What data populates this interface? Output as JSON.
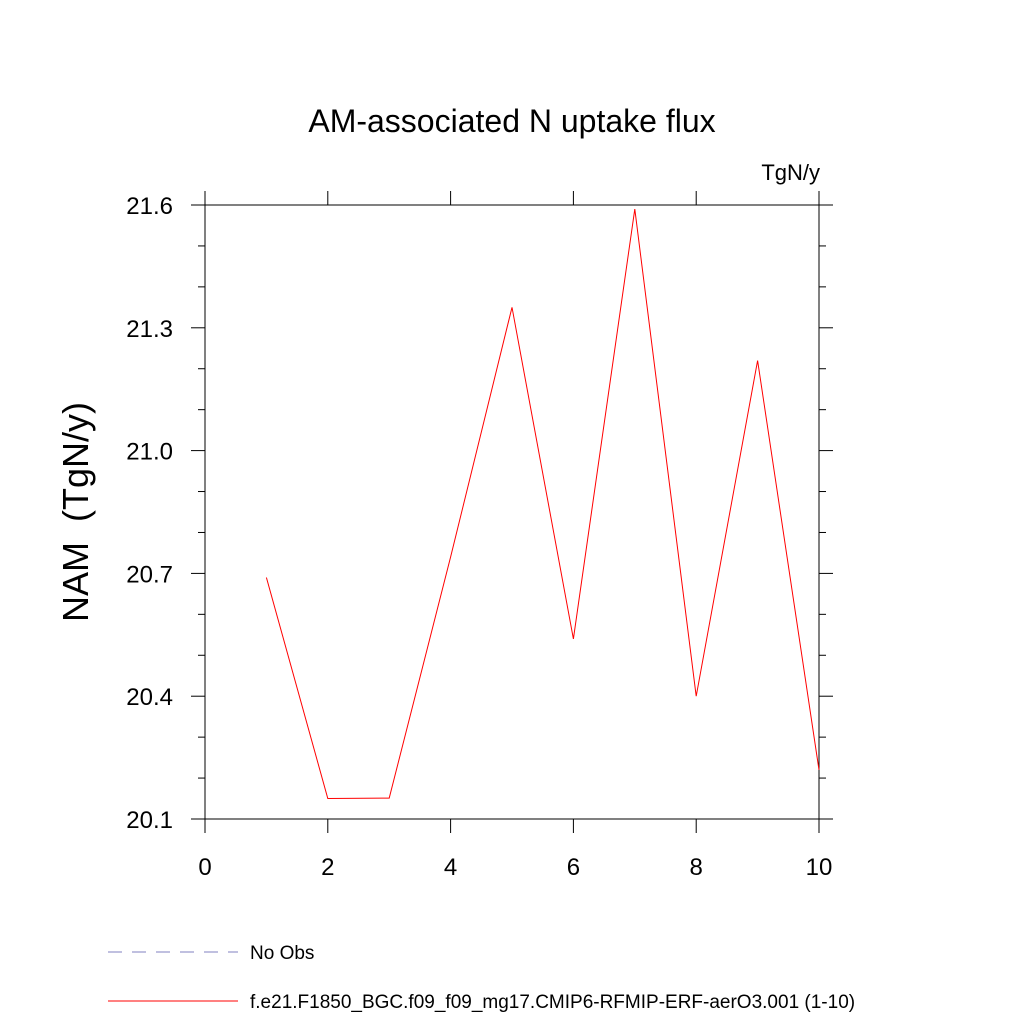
{
  "chart_data": {
    "type": "line",
    "title": "AM-associated N uptake flux",
    "units_label": "TgN/y",
    "xlabel": "",
    "ylabel": "NAM  (TgN/y)",
    "xlim": [
      0,
      10
    ],
    "ylim": [
      20.1,
      21.6
    ],
    "xticks": [
      0,
      2,
      4,
      6,
      8,
      10
    ],
    "xtick_labels": [
      "0",
      "2",
      "4",
      "6",
      "8",
      "10"
    ],
    "yticks": [
      20.1,
      20.4,
      20.7,
      21.0,
      21.3,
      21.6
    ],
    "ytick_labels": [
      "20.1",
      "20.4",
      "20.7",
      "21.0",
      "21.3",
      "21.6"
    ],
    "grid": false,
    "legend_position": "bottom",
    "series": [
      {
        "name": "f.e21.F1850_BGC.f09_f09_mg17.CMIP6-RFMIP-ERF-aerO3.001 (1-10)",
        "color": "#ff0000",
        "dash": "solid",
        "x": [
          1,
          2,
          3,
          4,
          5,
          6,
          7,
          8,
          9,
          10
        ],
        "y": [
          20.69,
          20.15,
          20.151,
          20.74,
          21.35,
          20.54,
          21.59,
          20.4,
          21.22,
          20.22
        ]
      }
    ],
    "legend": [
      {
        "label": "No Obs",
        "color": "#8080c0",
        "dash": "dashed"
      },
      {
        "label": "f.e21.F1850_BGC.f09_f09_mg17.CMIP6-RFMIP-ERF-aerO3.001 (1-10)",
        "color": "#ff0000",
        "dash": "solid"
      }
    ]
  }
}
